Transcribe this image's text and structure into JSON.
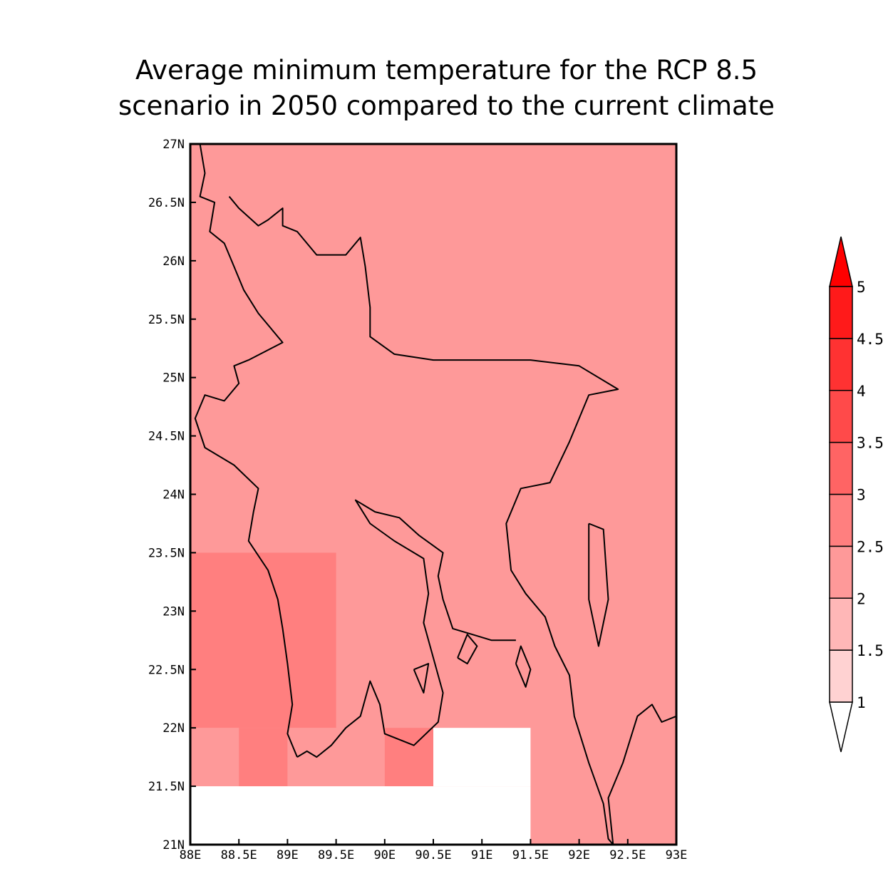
{
  "title": {
    "line1": "Average minimum temperature for the RCP 8.5",
    "line2": "scenario in 2050 compared to the current climate"
  },
  "map": {
    "lon_range": [
      88,
      93
    ],
    "lat_range": [
      21,
      27
    ],
    "x_ticks": [
      {
        "value": 88,
        "label": "88E"
      },
      {
        "value": 88.5,
        "label": "88.5E"
      },
      {
        "value": 89,
        "label": "89E"
      },
      {
        "value": 89.5,
        "label": "89.5E"
      },
      {
        "value": 90,
        "label": "90E"
      },
      {
        "value": 90.5,
        "label": "90.5E"
      },
      {
        "value": 91,
        "label": "91E"
      },
      {
        "value": 91.5,
        "label": "91.5E"
      },
      {
        "value": 92,
        "label": "92E"
      },
      {
        "value": 92.5,
        "label": "92.5E"
      },
      {
        "value": 93,
        "label": "93E"
      }
    ],
    "y_ticks": [
      {
        "value": 21,
        "label": "21N"
      },
      {
        "value": 21.5,
        "label": "21.5N"
      },
      {
        "value": 22,
        "label": "22N"
      },
      {
        "value": 22.5,
        "label": "22.5N"
      },
      {
        "value": 23,
        "label": "23N"
      },
      {
        "value": 23.5,
        "label": "23.5N"
      },
      {
        "value": 24,
        "label": "24N"
      },
      {
        "value": 24.5,
        "label": "24.5N"
      },
      {
        "value": 25,
        "label": "25N"
      },
      {
        "value": 25.5,
        "label": "25.5N"
      },
      {
        "value": 26,
        "label": "26N"
      },
      {
        "value": 26.5,
        "label": "26.5N"
      },
      {
        "value": 27,
        "label": "27N"
      }
    ],
    "background_color": "#fe9999",
    "cells": [
      {
        "lon0": 88,
        "lon1": 89.5,
        "lat0": 22,
        "lat1": 23.5,
        "color": "#ff7f7f"
      },
      {
        "lon0": 88.5,
        "lon1": 89,
        "lat0": 21.5,
        "lat1": 22,
        "color": "#ff7f7f"
      },
      {
        "lon0": 90,
        "lon1": 90.5,
        "lat0": 21.5,
        "lat1": 22,
        "color": "#ff7f7f"
      },
      {
        "lon0": 88,
        "lon1": 88.5,
        "lat0": 21.5,
        "lat1": 22,
        "color": "#fe9999"
      },
      {
        "lon0": 89,
        "lon1": 90,
        "lat0": 21.5,
        "lat1": 22,
        "color": "#fe9999"
      },
      {
        "lon0": 88,
        "lon1": 91.5,
        "lat0": 21,
        "lat1": 21.5,
        "color": "#ffffff"
      },
      {
        "lon0": 90.5,
        "lon1": 91.5,
        "lat0": 21.5,
        "lat1": 22,
        "color": "#ffffff"
      }
    ],
    "coastlines": [
      [
        [
          88.1,
          27
        ],
        [
          88.15,
          26.75
        ],
        [
          88.1,
          26.55
        ],
        [
          88.25,
          26.5
        ],
        [
          88.2,
          26.25
        ],
        [
          88.35,
          26.15
        ],
        [
          88.45,
          25.95
        ],
        [
          88.55,
          25.75
        ],
        [
          88.7,
          25.55
        ],
        [
          88.8,
          25.45
        ],
        [
          88.95,
          25.3
        ],
        [
          88.6,
          25.15
        ],
        [
          88.45,
          25.1
        ],
        [
          88.5,
          24.95
        ],
        [
          88.35,
          24.8
        ],
        [
          88.15,
          24.85
        ],
        [
          88.05,
          24.65
        ],
        [
          88.15,
          24.4
        ],
        [
          88.45,
          24.25
        ],
        [
          88.7,
          24.05
        ],
        [
          88.65,
          23.85
        ],
        [
          88.6,
          23.6
        ],
        [
          88.8,
          23.35
        ],
        [
          88.9,
          23.1
        ],
        [
          88.95,
          22.85
        ],
        [
          89.0,
          22.55
        ],
        [
          89.05,
          22.2
        ],
        [
          89.0,
          21.95
        ],
        [
          89.1,
          21.75
        ]
      ],
      [
        [
          88.4,
          26.55
        ],
        [
          88.5,
          26.45
        ],
        [
          88.7,
          26.3
        ],
        [
          88.8,
          26.35
        ],
        [
          88.95,
          26.45
        ],
        [
          88.95,
          26.3
        ],
        [
          89.1,
          26.25
        ],
        [
          89.3,
          26.05
        ],
        [
          89.6,
          26.05
        ],
        [
          89.75,
          26.2
        ],
        [
          89.8,
          25.95
        ],
        [
          89.85,
          25.6
        ],
        [
          89.85,
          25.35
        ],
        [
          90.1,
          25.2
        ],
        [
          90.5,
          25.15
        ],
        [
          91.0,
          25.15
        ],
        [
          91.5,
          25.15
        ],
        [
          92.0,
          25.1
        ],
        [
          92.4,
          24.9
        ],
        [
          92.1,
          24.85
        ],
        [
          91.9,
          24.45
        ],
        [
          91.7,
          24.1
        ],
        [
          91.4,
          24.05
        ],
        [
          91.25,
          23.75
        ],
        [
          91.3,
          23.35
        ],
        [
          91.45,
          23.15
        ],
        [
          91.65,
          22.95
        ],
        [
          91.75,
          22.7
        ],
        [
          91.9,
          22.45
        ],
        [
          91.95,
          22.1
        ],
        [
          92.1,
          21.7
        ],
        [
          92.25,
          21.35
        ],
        [
          92.3,
          21.05
        ],
        [
          92.35,
          21.0
        ]
      ],
      [
        [
          92.35,
          21.0
        ],
        [
          92.3,
          21.4
        ],
        [
          92.45,
          21.7
        ],
        [
          92.6,
          22.1
        ],
        [
          92.75,
          22.2
        ],
        [
          92.85,
          22.05
        ],
        [
          93.0,
          22.1
        ]
      ],
      [
        [
          91.35,
          22.75
        ],
        [
          91.1,
          22.75
        ],
        [
          90.9,
          22.8
        ],
        [
          90.7,
          22.85
        ],
        [
          90.6,
          23.1
        ],
        [
          90.55,
          23.3
        ],
        [
          90.6,
          23.5
        ],
        [
          90.35,
          23.65
        ],
        [
          90.15,
          23.8
        ],
        [
          89.9,
          23.85
        ],
        [
          89.7,
          23.95
        ],
        [
          89.85,
          23.75
        ],
        [
          90.1,
          23.6
        ],
        [
          90.4,
          23.45
        ],
        [
          90.45,
          23.15
        ],
        [
          90.4,
          22.9
        ],
        [
          90.5,
          22.6
        ],
        [
          90.6,
          22.3
        ],
        [
          90.55,
          22.05
        ],
        [
          90.3,
          21.85
        ],
        [
          90.0,
          21.95
        ],
        [
          89.95,
          22.2
        ],
        [
          89.85,
          22.4
        ],
        [
          89.75,
          22.1
        ],
        [
          89.6,
          22.0
        ],
        [
          89.45,
          21.85
        ],
        [
          89.3,
          21.75
        ],
        [
          89.2,
          21.8
        ],
        [
          89.1,
          21.75
        ]
      ],
      [
        [
          90.3,
          22.5
        ],
        [
          90.45,
          22.55
        ],
        [
          90.4,
          22.3
        ],
        [
          90.3,
          22.5
        ]
      ],
      [
        [
          90.75,
          22.6
        ],
        [
          90.85,
          22.55
        ],
        [
          90.95,
          22.7
        ],
        [
          90.85,
          22.8
        ],
        [
          90.75,
          22.6
        ]
      ],
      [
        [
          91.35,
          22.55
        ],
        [
          91.45,
          22.35
        ],
        [
          91.5,
          22.5
        ],
        [
          91.4,
          22.7
        ],
        [
          91.35,
          22.55
        ]
      ],
      [
        [
          92.1,
          23.75
        ],
        [
          92.25,
          23.7
        ],
        [
          92.3,
          23.1
        ],
        [
          92.2,
          22.7
        ],
        [
          92.1,
          23.1
        ],
        [
          92.1,
          23.75
        ]
      ]
    ]
  },
  "colorbar": {
    "levels": [
      {
        "label": "1",
        "color": "#ffd2d2"
      },
      {
        "label": "1.5",
        "color": "#ffb7b7"
      },
      {
        "label": "2",
        "color": "#fe9999"
      },
      {
        "label": "2.5",
        "color": "#ff7f7f"
      },
      {
        "label": "3",
        "color": "#ff6464"
      },
      {
        "label": "3.5",
        "color": "#ff4a4a"
      },
      {
        "label": "4",
        "color": "#ff3232"
      },
      {
        "label": "4.5",
        "color": "#ff1a1a"
      },
      {
        "label": "5",
        "color": "#ff1414"
      }
    ],
    "lower_color": "#ffffff",
    "upper_color": "#ff0000"
  }
}
